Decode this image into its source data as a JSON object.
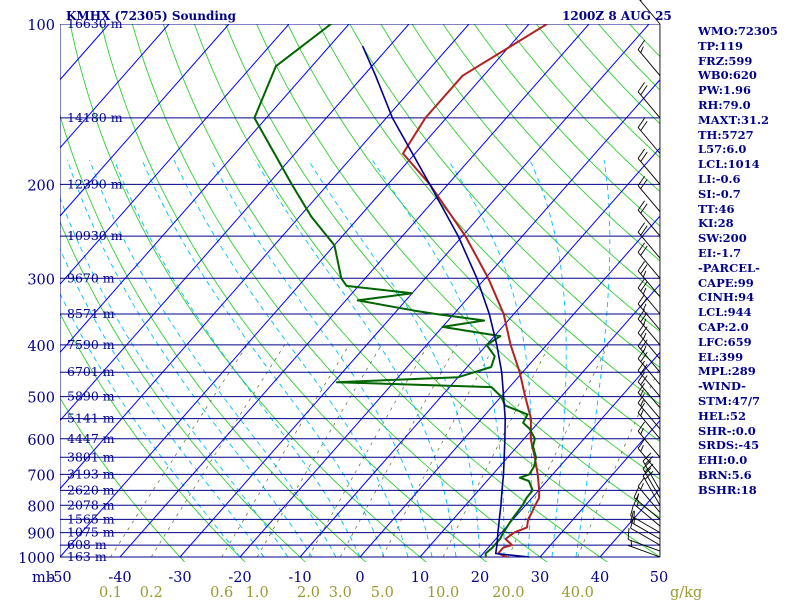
{
  "header": {
    "station": "KMHX (72305) Sounding",
    "time": "1200Z  8 AUG 25"
  },
  "indices": [
    "WMO:72305",
    "TP:119",
    "FRZ:599",
    "WB0:620",
    "PW:1.96",
    "RH:79.0",
    "MAXT:31.2",
    "TH:5727",
    "L57:6.0",
    "LCL:1014",
    "LI:-0.6",
    "SI:-0.7",
    "TT:46",
    "KI:28",
    "SW:200",
    "EI:-1.7",
    "-PARCEL-",
    "CAPE:99",
    "CINH:94",
    "LCL:944",
    "CAP:2.0",
    "LFC:659",
    "EL:399",
    "MPL:289",
    "-WIND-",
    "STM:47/7",
    "HEL:52",
    "SHR-:0.0",
    "SRDS:-45",
    "EHI:0.0",
    "BRN:5.6",
    "BSHR:18"
  ],
  "colors": {
    "isobar": "#00008b",
    "isotherm": "#0000ff",
    "dry_adiabat": "#32cd32",
    "moist_adiabat": "#00bfff",
    "mixing_ratio": "#556b2f",
    "temperature": "#b22222",
    "dewpoint": "#006400",
    "parcel": "#00008b",
    "axis_tick": "#9a9a30"
  },
  "chart_data": {
    "type": "line",
    "diagram": "skew-T log-P",
    "pressure_range": [
      1000,
      100
    ],
    "temperature_range": [
      -50,
      50
    ],
    "xunit_label": "mb",
    "mixing_ratio_unit": "g/kg",
    "isobars": [
      {
        "p": 100,
        "height": "16630 m"
      },
      {
        "p": 150,
        "height": "14180 m"
      },
      {
        "p": 200,
        "height": "12390 m"
      },
      {
        "p": 250,
        "height": "10930 m"
      },
      {
        "p": 300,
        "height": "9670 m"
      },
      {
        "p": 350,
        "height": "8571 m"
      },
      {
        "p": 400,
        "height": "7590 m"
      },
      {
        "p": 450,
        "height": "6701 m"
      },
      {
        "p": 500,
        "height": "5890 m"
      },
      {
        "p": 550,
        "height": "5141 m"
      },
      {
        "p": 600,
        "height": "4447 m"
      },
      {
        "p": 650,
        "height": "3801 m"
      },
      {
        "p": 700,
        "height": "3193 m"
      },
      {
        "p": 750,
        "height": "2620 m"
      },
      {
        "p": 800,
        "height": "2078 m"
      },
      {
        "p": 850,
        "height": "1565 m"
      },
      {
        "p": 900,
        "height": "1075 m"
      },
      {
        "p": 950,
        "height": "608 m"
      },
      {
        "p": 1000,
        "height": "163 m"
      }
    ],
    "pressure_tick_labels": [
      "100",
      "200",
      "300",
      "400",
      "500",
      "600",
      "700",
      "800",
      "900",
      "1000"
    ],
    "temperature_tick_labels": [
      "-50",
      "-40",
      "-30",
      "-20",
      "-10",
      "0",
      "10",
      "20",
      "30",
      "40",
      "50"
    ],
    "mixing_ratio_labels": [
      "0.1",
      "0.2",
      "0.6",
      "1.0",
      "2.0",
      "3.0",
      "5.0",
      "10.0",
      "20.0",
      "40.0"
    ],
    "mixing_ratio_values": [
      0.1,
      0.2,
      0.6,
      1.0,
      2.0,
      3.0,
      5.0,
      10.0,
      20.0,
      40.0
    ],
    "series": [
      {
        "key": "temperature",
        "points": [
          [
            1000,
            24.5
          ],
          [
            985,
            22.5
          ],
          [
            960,
            22.5
          ],
          [
            950,
            23.6
          ],
          [
            925,
            21.6
          ],
          [
            900,
            22.1
          ],
          [
            880,
            23.5
          ],
          [
            850,
            22.5
          ],
          [
            825,
            22.1
          ],
          [
            800,
            21.6
          ],
          [
            775,
            21.2
          ],
          [
            750,
            20.1
          ],
          [
            700,
            17.5
          ],
          [
            650,
            14.5
          ],
          [
            600,
            11.1
          ],
          [
            550,
            8.2
          ],
          [
            500,
            4.0
          ],
          [
            450,
            -0.5
          ],
          [
            400,
            -6.0
          ],
          [
            350,
            -11.7
          ],
          [
            300,
            -19.5
          ],
          [
            250,
            -29.5
          ],
          [
            200,
            -43.0
          ],
          [
            175,
            -52.0
          ],
          [
            150,
            -53.5
          ],
          [
            125,
            -53.5
          ],
          [
            100,
            -47.0
          ]
        ]
      },
      {
        "key": "dewpoint",
        "points": [
          [
            1000,
            21.0
          ],
          [
            985,
            20.4
          ],
          [
            960,
            20.7
          ],
          [
            950,
            20.7
          ],
          [
            925,
            20.7
          ],
          [
            900,
            20.3
          ],
          [
            850,
            19.8
          ],
          [
            800,
            19.5
          ],
          [
            775,
            19.1
          ],
          [
            750,
            19.0
          ],
          [
            720,
            17.0
          ],
          [
            710,
            15.0
          ],
          [
            700,
            16.1
          ],
          [
            675,
            15.7
          ],
          [
            650,
            14.7
          ],
          [
            620,
            12.6
          ],
          [
            600,
            11.8
          ],
          [
            575,
            9.5
          ],
          [
            560,
            7.5
          ],
          [
            540,
            7.0
          ],
          [
            520,
            2.0
          ],
          [
            500,
            0.0
          ],
          [
            480,
            -3.0
          ],
          [
            470,
            -29.5
          ],
          [
            460,
            -10.0
          ],
          [
            440,
            -6.0
          ],
          [
            420,
            -7.0
          ],
          [
            400,
            -10.0
          ],
          [
            385,
            -9.0
          ],
          [
            370,
            -20.0
          ],
          [
            360,
            -14.0
          ],
          [
            350,
            -23.0
          ],
          [
            345,
            -27.0
          ],
          [
            330,
            -38.0
          ],
          [
            320,
            -30.0
          ],
          [
            310,
            -42.0
          ],
          [
            300,
            -44.0
          ],
          [
            260,
            -50.0
          ],
          [
            230,
            -58.0
          ],
          [
            200,
            -66.0
          ],
          [
            150,
            -82.0
          ],
          [
            120,
            -86.0
          ],
          [
            100,
            -83.0
          ]
        ]
      },
      {
        "key": "parcel",
        "points": [
          [
            1000,
            28.2
          ],
          [
            985,
            22.1
          ],
          [
            944,
            20.9
          ],
          [
            900,
            19.4
          ],
          [
            850,
            17.7
          ],
          [
            800,
            15.9
          ],
          [
            750,
            13.9
          ],
          [
            700,
            11.8
          ],
          [
            650,
            9.4
          ],
          [
            600,
            6.8
          ],
          [
            550,
            3.9
          ],
          [
            500,
            0.4
          ],
          [
            450,
            -3.5
          ],
          [
            400,
            -8.3
          ],
          [
            350,
            -14.1
          ],
          [
            300,
            -21.4
          ],
          [
            250,
            -30.7
          ],
          [
            200,
            -43.0
          ],
          [
            150,
            -59.0
          ],
          [
            125,
            -68.0
          ],
          [
            110,
            -74.5
          ]
        ]
      }
    ],
    "wind_barbs": [
      {
        "p": 1000,
        "dir": 290,
        "kt": 7
      },
      {
        "p": 975,
        "dir": 290,
        "kt": 10
      },
      {
        "p": 950,
        "dir": 300,
        "kt": 12
      },
      {
        "p": 925,
        "dir": 300,
        "kt": 15
      },
      {
        "p": 900,
        "dir": 300,
        "kt": 15
      },
      {
        "p": 875,
        "dir": 310,
        "kt": 15
      },
      {
        "p": 850,
        "dir": 310,
        "kt": 15
      },
      {
        "p": 825,
        "dir": 320,
        "kt": 15
      },
      {
        "p": 800,
        "dir": 330,
        "kt": 20
      },
      {
        "p": 775,
        "dir": 330,
        "kt": 20
      },
      {
        "p": 750,
        "dir": 330,
        "kt": 20
      },
      {
        "p": 700,
        "dir": 320,
        "kt": 15
      },
      {
        "p": 650,
        "dir": 320,
        "kt": 15
      },
      {
        "p": 600,
        "dir": 320,
        "kt": 15
      },
      {
        "p": 575,
        "dir": 320,
        "kt": 15
      },
      {
        "p": 550,
        "dir": 320,
        "kt": 15
      },
      {
        "p": 525,
        "dir": 320,
        "kt": 20
      },
      {
        "p": 500,
        "dir": 320,
        "kt": 20
      },
      {
        "p": 475,
        "dir": 320,
        "kt": 20
      },
      {
        "p": 450,
        "dir": 320,
        "kt": 25
      },
      {
        "p": 425,
        "dir": 320,
        "kt": 25
      },
      {
        "p": 400,
        "dir": 320,
        "kt": 25
      },
      {
        "p": 375,
        "dir": 320,
        "kt": 25
      },
      {
        "p": 350,
        "dir": 320,
        "kt": 25
      },
      {
        "p": 325,
        "dir": 320,
        "kt": 25
      },
      {
        "p": 300,
        "dir": 320,
        "kt": 20
      },
      {
        "p": 275,
        "dir": 320,
        "kt": 20
      },
      {
        "p": 250,
        "dir": 320,
        "kt": 20
      },
      {
        "p": 225,
        "dir": 320,
        "kt": 20
      },
      {
        "p": 200,
        "dir": 320,
        "kt": 20
      },
      {
        "p": 175,
        "dir": 320,
        "kt": 20
      },
      {
        "p": 150,
        "dir": 320,
        "kt": 20
      },
      {
        "p": 125,
        "dir": 320,
        "kt": 15
      },
      {
        "p": 100,
        "dir": 320,
        "kt": 15
      }
    ]
  }
}
